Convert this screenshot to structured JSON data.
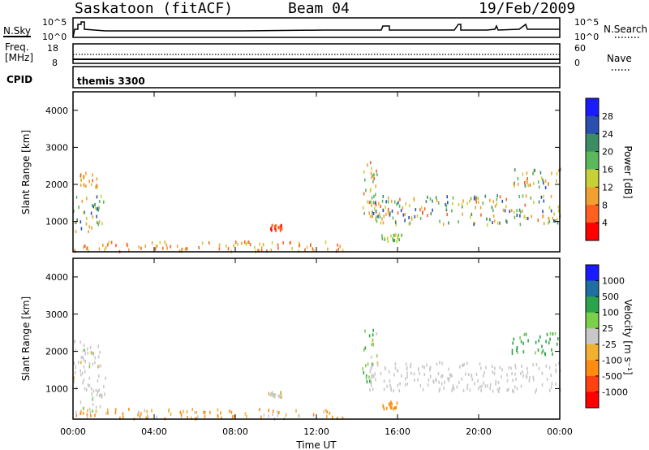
{
  "header": {
    "title": "Saskatoon (fitACF)",
    "beam": "Beam 04",
    "date": "19/Feb/2009"
  },
  "noise_panel": {
    "left_label": "N.Sky",
    "right_label": "N.Search",
    "left_ticks": [
      "10^5",
      "10^0"
    ],
    "right_ticks": [
      "10^5",
      "10^0"
    ]
  },
  "freq_panel": {
    "left_label_1": "Freq.",
    "left_label_2": "[MHz]",
    "left_ticks": [
      "18",
      "8"
    ],
    "right_label": "Nave",
    "right_ticks": [
      "60",
      "0"
    ]
  },
  "cpid_panel": {
    "label": "CPID",
    "value": "themis 3300"
  },
  "colors": {
    "power_scale": [
      "#1a1aff",
      "#2a4fb0",
      "#3c8c64",
      "#5cb85c",
      "#c8d038",
      "#f0a030",
      "#ff6020",
      "#ff0000"
    ],
    "velocity_scale": [
      "#1a1aff",
      "#1f6fa0",
      "#2aa34a",
      "#7bd04a",
      "#c8c8c8",
      "#f0b030",
      "#ff8c10",
      "#ff4010",
      "#ff0000"
    ]
  },
  "chart_data": [
    {
      "type": "heatmap",
      "name": "power",
      "ylabel": "Slant Range [km]",
      "colorbar_label": "Power [dB]",
      "colorbar_ticks": [
        "28",
        "24",
        "20",
        "16",
        "12",
        "8",
        "4"
      ],
      "yticks": [
        "4000",
        "3000",
        "2000",
        "1000"
      ],
      "ylim": [
        180,
        4500
      ],
      "xlim_hours": [
        0,
        24
      ],
      "clim": [
        0,
        32
      ],
      "regions": [
        {
          "t0": 0.0,
          "t1": 1.5,
          "r0": 700,
          "r1": 1700,
          "v0": 8,
          "v1": 28
        },
        {
          "t0": 0.3,
          "t1": 1.2,
          "r0": 1900,
          "r1": 2300,
          "v0": 6,
          "v1": 14
        },
        {
          "t0": 0.0,
          "t1": 13.5,
          "r0": 180,
          "r1": 450,
          "v0": 4,
          "v1": 14
        },
        {
          "t0": 9.6,
          "t1": 10.3,
          "r0": 750,
          "r1": 900,
          "v0": 3,
          "v1": 8
        },
        {
          "t0": 14.2,
          "t1": 15.0,
          "r0": 1100,
          "r1": 2600,
          "v0": 4,
          "v1": 20
        },
        {
          "t0": 14.6,
          "t1": 24.0,
          "r0": 900,
          "r1": 1700,
          "v0": 6,
          "v1": 28
        },
        {
          "t0": 15.2,
          "t1": 16.2,
          "r0": 450,
          "r1": 650,
          "v0": 12,
          "v1": 22
        },
        {
          "t0": 21.6,
          "t1": 24.0,
          "r0": 1900,
          "r1": 2500,
          "v0": 6,
          "v1": 26
        }
      ]
    },
    {
      "type": "heatmap",
      "name": "velocity",
      "xlabel": "Time UT",
      "ylabel": "Slant Range [km]",
      "colorbar_label": "Velocity [m s⁻¹]",
      "colorbar_ticks": [
        "1000",
        "500",
        "100",
        "25",
        "-25",
        "-100",
        "-500",
        "-1000"
      ],
      "yticks": [
        "4000",
        "3000",
        "2000",
        "1000"
      ],
      "xticks": [
        "00:00",
        "04:00",
        "08:00",
        "12:00",
        "16:00",
        "20:00",
        "00:00"
      ],
      "ylim": [
        180,
        4500
      ],
      "xlim_hours": [
        0,
        24
      ],
      "regions": [
        {
          "t0": 0.0,
          "t1": 1.6,
          "r0": 300,
          "r1": 2300,
          "v0": -30,
          "v1": 30
        },
        {
          "t0": 0.0,
          "t1": 13.5,
          "r0": 180,
          "r1": 450,
          "v0": -200,
          "v1": 20
        },
        {
          "t0": 9.6,
          "t1": 10.3,
          "r0": 750,
          "r1": 900,
          "v0": -30,
          "v1": 30
        },
        {
          "t0": 14.2,
          "t1": 15.0,
          "r0": 1100,
          "r1": 2600,
          "v0": -40,
          "v1": 120
        },
        {
          "t0": 14.6,
          "t1": 24.0,
          "r0": 900,
          "r1": 1700,
          "v0": -20,
          "v1": 20
        },
        {
          "t0": 15.2,
          "t1": 16.2,
          "r0": 450,
          "r1": 650,
          "v0": -300,
          "v1": -80
        },
        {
          "t0": 21.6,
          "t1": 24.0,
          "r0": 1900,
          "r1": 2500,
          "v0": 40,
          "v1": 400
        }
      ]
    }
  ]
}
